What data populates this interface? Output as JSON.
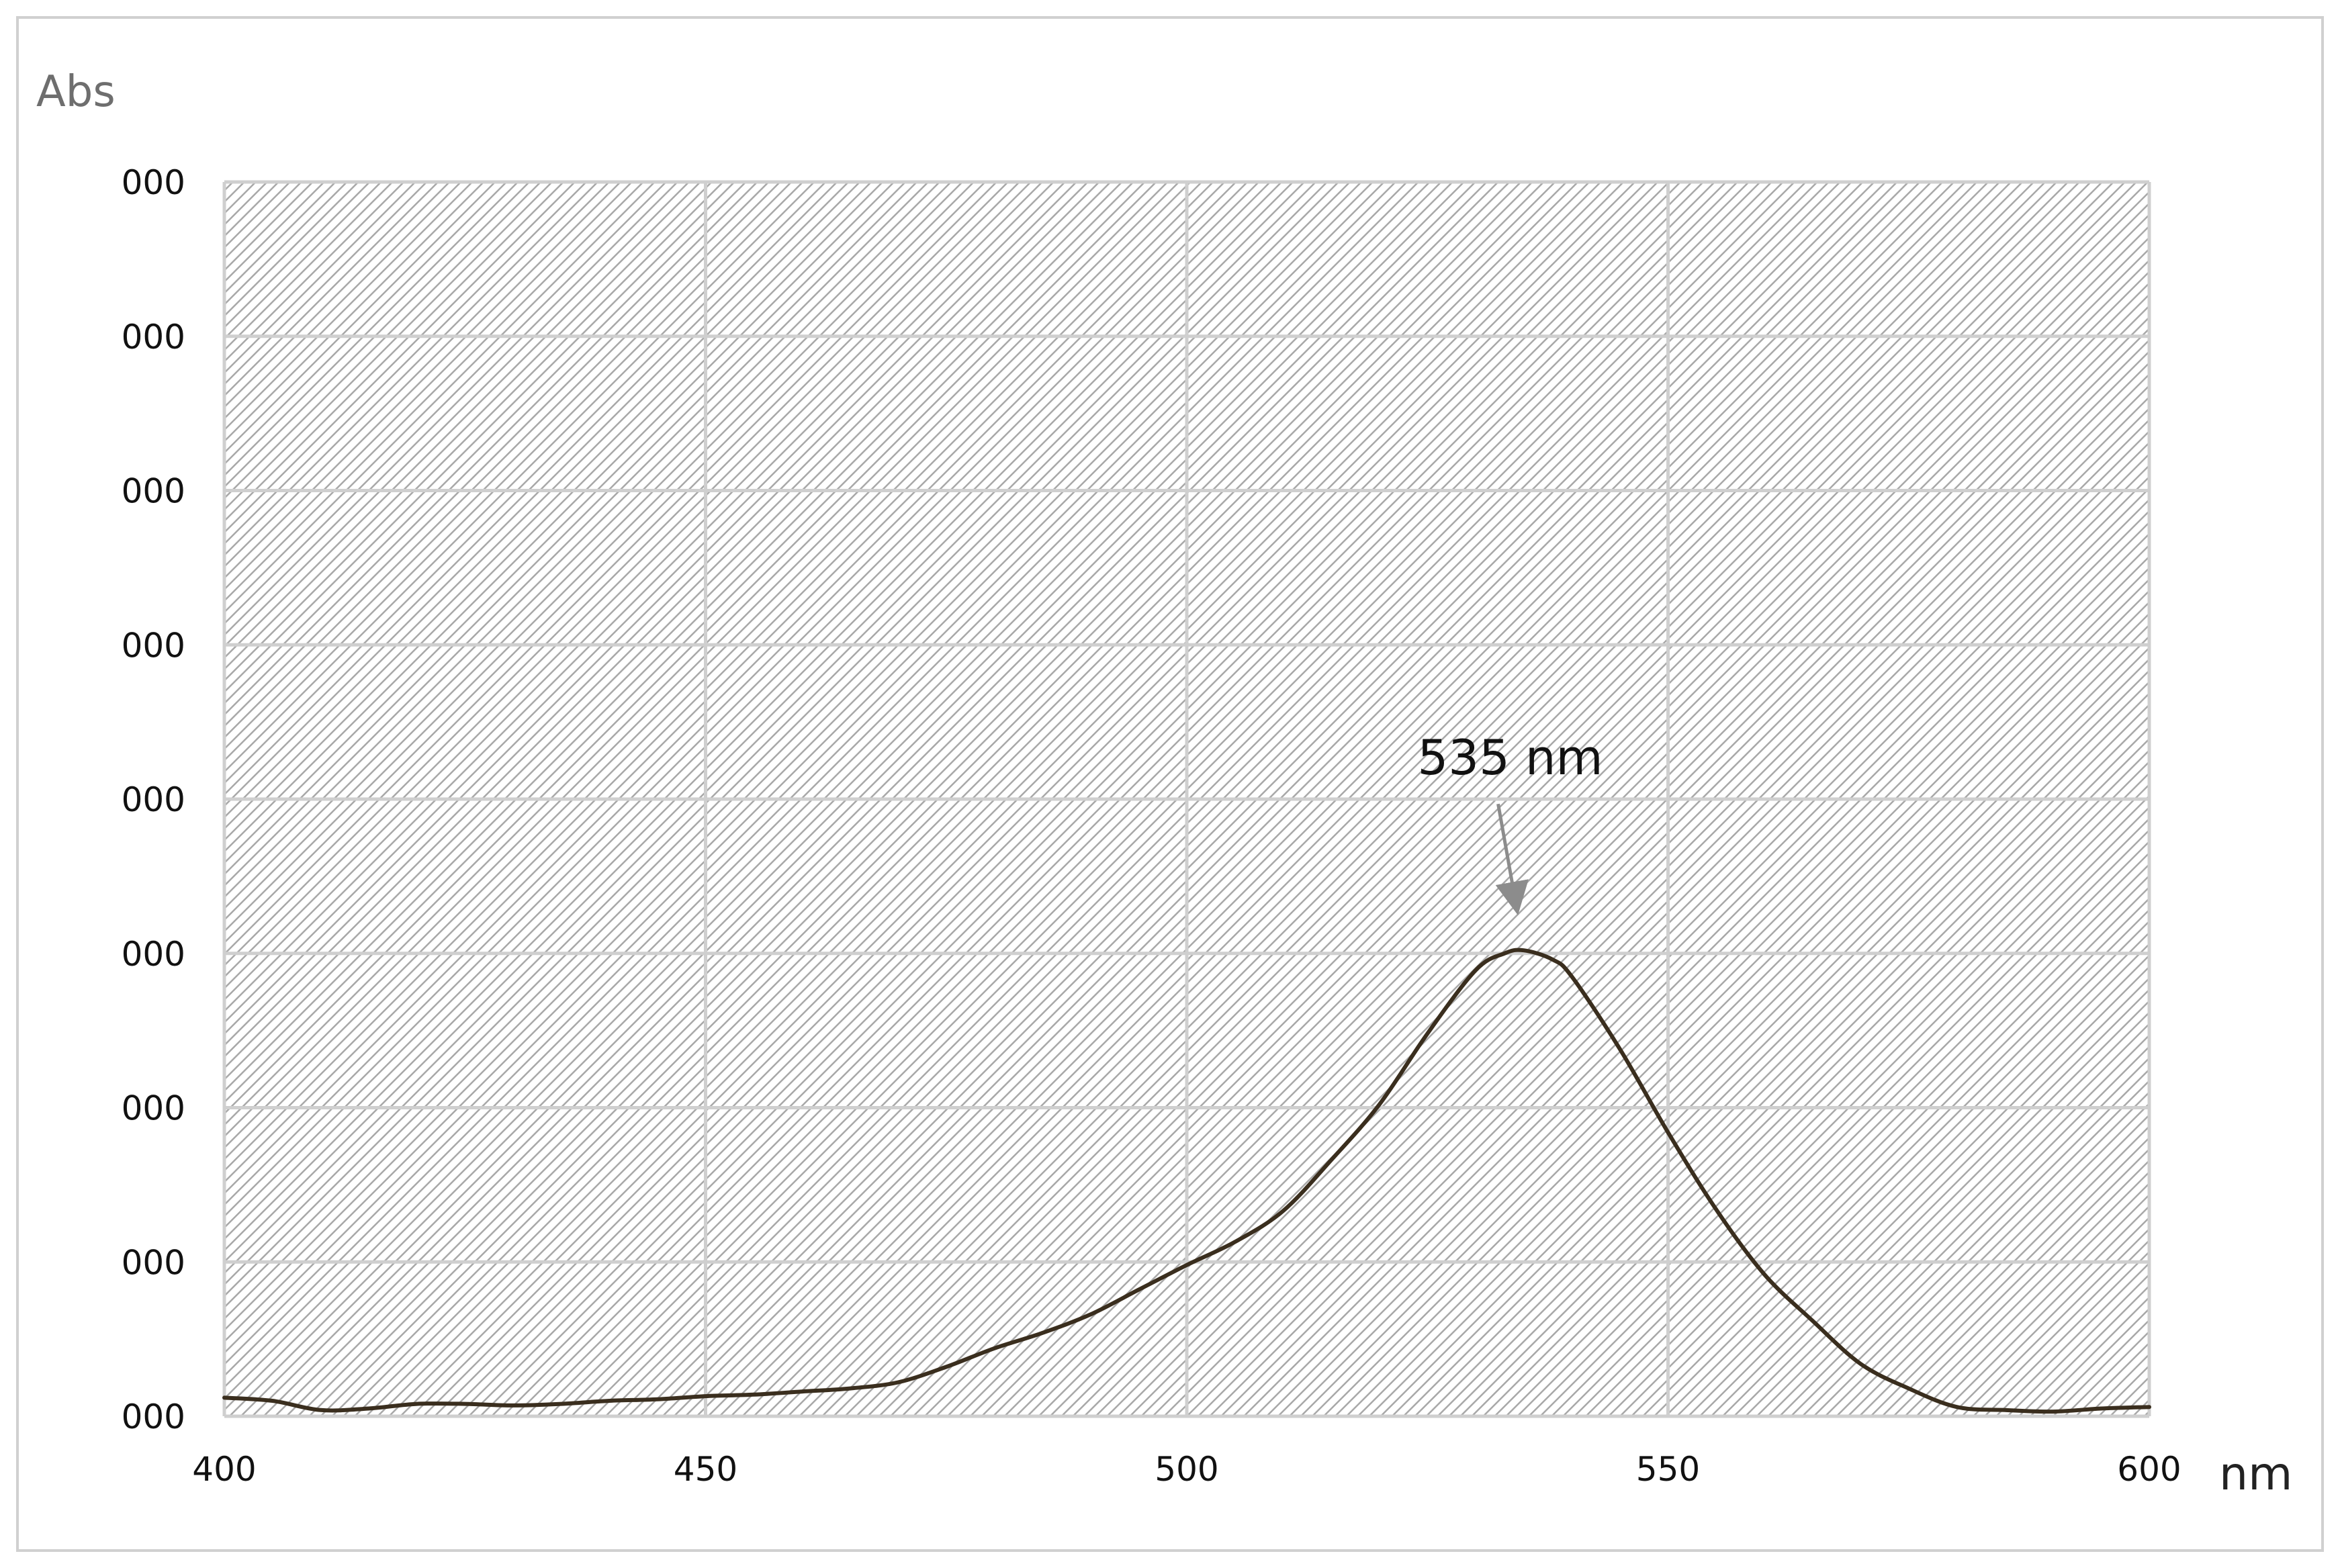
{
  "chart_data": {
    "type": "line",
    "title": "",
    "ylabel": "Abs",
    "xlabel": "nm",
    "xlim": [
      400,
      600
    ],
    "ylim": [
      0,
      8
    ],
    "x_ticks": [
      {
        "value": 400,
        "label": "400"
      },
      {
        "value": 450,
        "label": "450"
      },
      {
        "value": 500,
        "label": "500"
      },
      {
        "value": 550,
        "label": "550"
      },
      {
        "value": 600,
        "label": "600"
      }
    ],
    "y_ticks": [
      {
        "value": 0,
        "label": "000"
      },
      {
        "value": 1,
        "label": "000"
      },
      {
        "value": 2,
        "label": "000"
      },
      {
        "value": 3,
        "label": "000"
      },
      {
        "value": 4,
        "label": "000"
      },
      {
        "value": 5,
        "label": "000"
      },
      {
        "value": 6,
        "label": "000"
      },
      {
        "value": 7,
        "label": "000"
      },
      {
        "value": 8,
        "label": "000"
      }
    ],
    "grid": true,
    "legend": "none",
    "series": [
      {
        "color": "#3a2e1e",
        "points": [
          [
            400,
            0.12
          ],
          [
            405,
            0.1
          ],
          [
            410,
            0.04
          ],
          [
            415,
            0.05
          ],
          [
            420,
            0.08
          ],
          [
            425,
            0.08
          ],
          [
            430,
            0.07
          ],
          [
            435,
            0.08
          ],
          [
            440,
            0.1
          ],
          [
            445,
            0.11
          ],
          [
            450,
            0.13
          ],
          [
            455,
            0.14
          ],
          [
            460,
            0.16
          ],
          [
            465,
            0.18
          ],
          [
            470,
            0.22
          ],
          [
            475,
            0.32
          ],
          [
            480,
            0.44
          ],
          [
            485,
            0.54
          ],
          [
            490,
            0.66
          ],
          [
            495,
            0.82
          ],
          [
            500,
            0.98
          ],
          [
            505,
            1.13
          ],
          [
            510,
            1.33
          ],
          [
            515,
            1.66
          ],
          [
            520,
            2.02
          ],
          [
            525,
            2.48
          ],
          [
            530,
            2.89
          ],
          [
            533,
            3.0
          ],
          [
            535,
            3.02
          ],
          [
            538,
            2.96
          ],
          [
            540,
            2.85
          ],
          [
            545,
            2.38
          ],
          [
            550,
            1.84
          ],
          [
            555,
            1.34
          ],
          [
            560,
            0.92
          ],
          [
            565,
            0.62
          ],
          [
            570,
            0.34
          ],
          [
            575,
            0.18
          ],
          [
            580,
            0.06
          ],
          [
            585,
            0.04
          ],
          [
            590,
            0.03
          ],
          [
            595,
            0.05
          ],
          [
            600,
            0.06
          ]
        ]
      }
    ],
    "annotations": [
      {
        "text": "535 nm",
        "x": 535,
        "y": 3.02
      }
    ]
  },
  "colors": {
    "frame_border": "#d0d0d0",
    "plot_hatch_line": "#a8a8a8",
    "gridline": "#cfcfcf",
    "curve": "#3a2e1e",
    "arrow": "#8c8c8c"
  }
}
